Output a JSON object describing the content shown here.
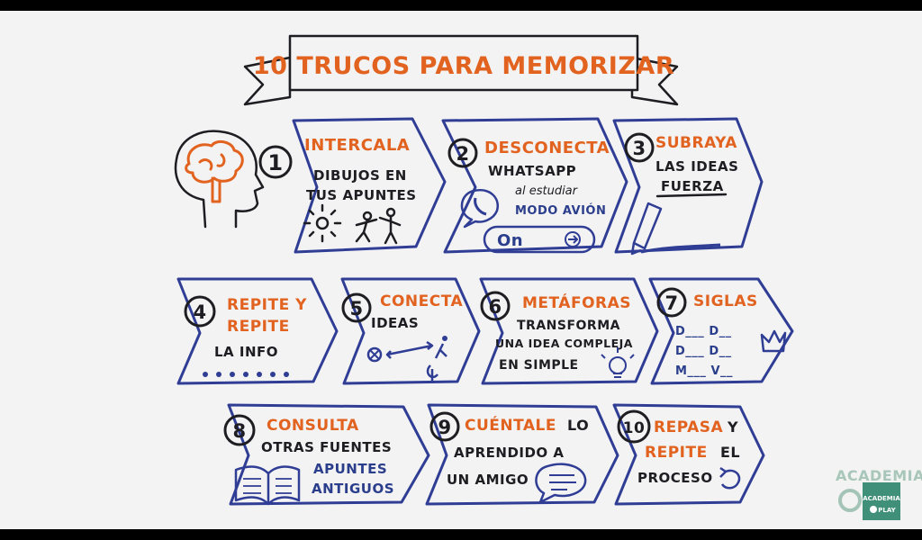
{
  "title": "10 TRUCOS PARA MEMORIZAR",
  "tips": [
    {
      "number": "1",
      "heading": "INTERCALA",
      "lines": [
        "DIBUJOS EN",
        "TUS APUNTES"
      ]
    },
    {
      "number": "2",
      "heading": "DESCONECTA",
      "lines": [
        "WHATSAPP"
      ],
      "note": "al estudiar",
      "mode": "MODO AVIÓN",
      "toggle": "On"
    },
    {
      "number": "3",
      "heading_lines": [
        "SUBRAYA"
      ],
      "lines": [
        "LAS IDEAS",
        "FUERZA"
      ]
    },
    {
      "number": "4",
      "heading_lines": [
        "REPITE Y",
        "REPITE"
      ],
      "lines": [
        "LA INFO"
      ]
    },
    {
      "number": "5",
      "heading": "CONECTA",
      "lines": [
        "IDEAS"
      ]
    },
    {
      "number": "6",
      "heading": "METÁFORAS",
      "lines": [
        "TRANSFORMA",
        "UNA IDEA COMPLEJA",
        "EN SIMPLE"
      ]
    },
    {
      "number": "7",
      "heading": "SIGLAS",
      "lines": [
        "D___ D__",
        "D___ D__",
        "M___ V__"
      ]
    },
    {
      "number": "8",
      "heading": "CONSULTA",
      "lines": [
        "OTRAS FUENTES"
      ],
      "accent_lines": [
        "APUNTES",
        "ANTIGUOS"
      ]
    },
    {
      "number": "9",
      "heading": "CUÉNTALE",
      "heading_suffix": "LO",
      "lines": [
        "APRENDIDO A",
        "UN AMIGO"
      ]
    },
    {
      "number": "10",
      "heading": "REPASA",
      "heading_suffix": "Y",
      "heading2": "REPITE",
      "heading2_suffix": "EL",
      "lines": [
        "PROCESO"
      ]
    }
  ],
  "brand": {
    "watermark": "ACADEMIA",
    "logo_line1": "ACADEMIA",
    "logo_line2": "PLAY"
  },
  "colors": {
    "accent": "#e2631f",
    "ink": "#1d1d22",
    "frame": "#2f3d95",
    "background": "#f3f3f4"
  }
}
